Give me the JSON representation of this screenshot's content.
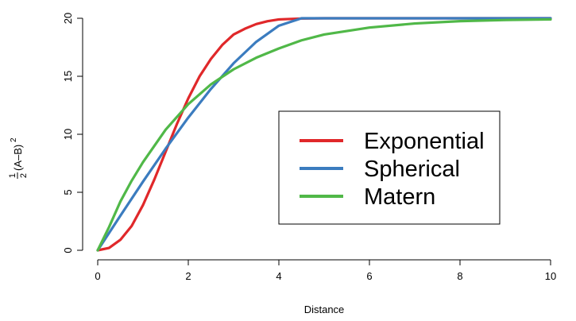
{
  "chart_data": {
    "type": "line",
    "title": "",
    "xlabel": "Distance",
    "ylabel": {
      "frac_num": "1",
      "frac_den": "2",
      "expr": "(A–B)",
      "power": "2"
    },
    "xlim": [
      0,
      10
    ],
    "ylim": [
      0,
      20
    ],
    "xticks": [
      "0",
      "2",
      "4",
      "6",
      "8",
      "10"
    ],
    "yticks": [
      "0",
      "5",
      "10",
      "15",
      "20"
    ],
    "grid": false,
    "legend_position": "center-right",
    "series": [
      {
        "name": "Exponential",
        "color": "#e0282a",
        "x": [
          0,
          0.25,
          0.5,
          0.75,
          1,
          1.25,
          1.5,
          1.75,
          2,
          2.25,
          2.5,
          2.75,
          3,
          3.25,
          3.5,
          3.75,
          4,
          4.5,
          5,
          6,
          7,
          8,
          9,
          10
        ],
        "y": [
          0,
          0.2,
          0.9,
          2.1,
          3.9,
          6.1,
          8.5,
          10.9,
          13.1,
          15.0,
          16.5,
          17.7,
          18.6,
          19.1,
          19.5,
          19.75,
          19.9,
          19.98,
          20,
          20,
          20,
          20,
          20,
          20
        ]
      },
      {
        "name": "Spherical",
        "color": "#3b7cbf",
        "x": [
          0,
          0.5,
          1,
          1.5,
          2,
          2.5,
          3,
          3.5,
          4,
          4.5,
          5,
          6,
          7,
          8,
          9,
          10
        ],
        "y": [
          0,
          2.98,
          5.92,
          8.76,
          11.44,
          13.91,
          16.12,
          17.97,
          19.36,
          20,
          20,
          20,
          20,
          20,
          20,
          20
        ]
      },
      {
        "name": "Matern",
        "color": "#50b848",
        "x": [
          0,
          0.25,
          0.5,
          0.75,
          1,
          1.5,
          2,
          2.5,
          3,
          3.5,
          4,
          4.5,
          5,
          6,
          7,
          8,
          9,
          10
        ],
        "y": [
          0,
          2.0,
          4.2,
          6.0,
          7.6,
          10.4,
          12.6,
          14.3,
          15.6,
          16.6,
          17.4,
          18.1,
          18.6,
          19.2,
          19.55,
          19.75,
          19.85,
          19.9
        ]
      }
    ]
  }
}
